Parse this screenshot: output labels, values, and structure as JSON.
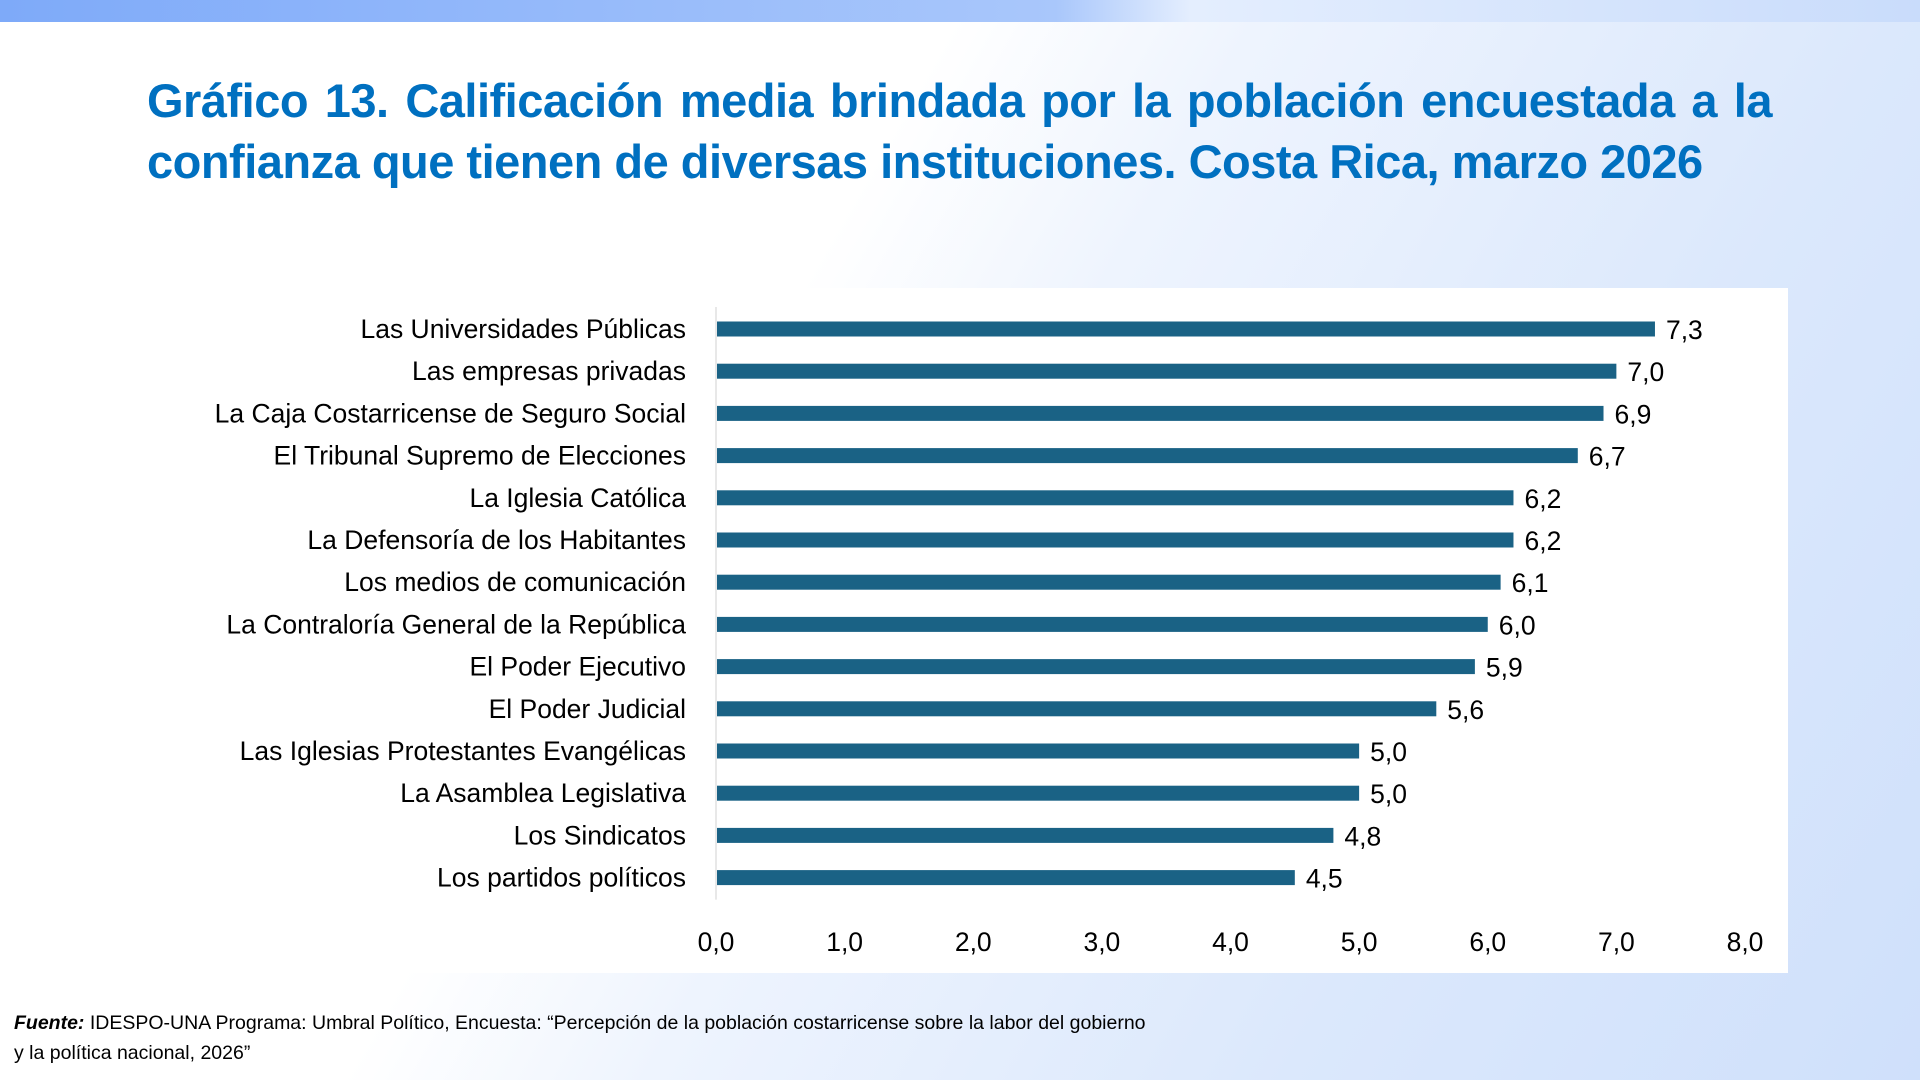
{
  "title": "Gráfico 13. Calificación media brindada por la población encuestada a la confianza que tienen de diversas instituciones. Costa Rica, marzo 2026",
  "footer": {
    "label": "Fuente:",
    "text": "IDESPO-UNA Programa: Umbral Político, Encuesta: “Percepción de la población costarricense sobre la labor del gobierno",
    "text2": "y la política nacional, 2026”"
  },
  "colors": {
    "bar": "#1a6285",
    "title": "#0070c0"
  },
  "chart_data": {
    "type": "bar",
    "orientation": "horizontal",
    "categories": [
      "Las Universidades Públicas",
      "Las empresas privadas",
      "La Caja Costarricense de Seguro Social",
      "El Tribunal Supremo de Elecciones",
      "La Iglesia Católica",
      "La Defensoría de los Habitantes",
      "Los medios de comunicación",
      "La Contraloría General de la República",
      "El Poder Ejecutivo",
      "El Poder Judicial",
      "Las Iglesias Protestantes Evangélicas",
      "La Asamblea Legislativa",
      "Los Sindicatos",
      "Los partidos políticos"
    ],
    "values": [
      7.3,
      7.0,
      6.9,
      6.7,
      6.2,
      6.2,
      6.1,
      6.0,
      5.9,
      5.6,
      5.0,
      5.0,
      4.8,
      4.5
    ],
    "data_labels": [
      "7,3",
      "7,0",
      "6,9",
      "6,7",
      "6,2",
      "6,2",
      "6,1",
      "6,0",
      "5,9",
      "5,6",
      "5,0",
      "5,0",
      "4,8",
      "4,5"
    ],
    "xlim": [
      0,
      8
    ],
    "ticks": [
      "0,0",
      "1,0",
      "2,0",
      "3,0",
      "4,0",
      "5,0",
      "6,0",
      "7,0",
      "8,0"
    ],
    "grid": false,
    "legend": "none"
  }
}
